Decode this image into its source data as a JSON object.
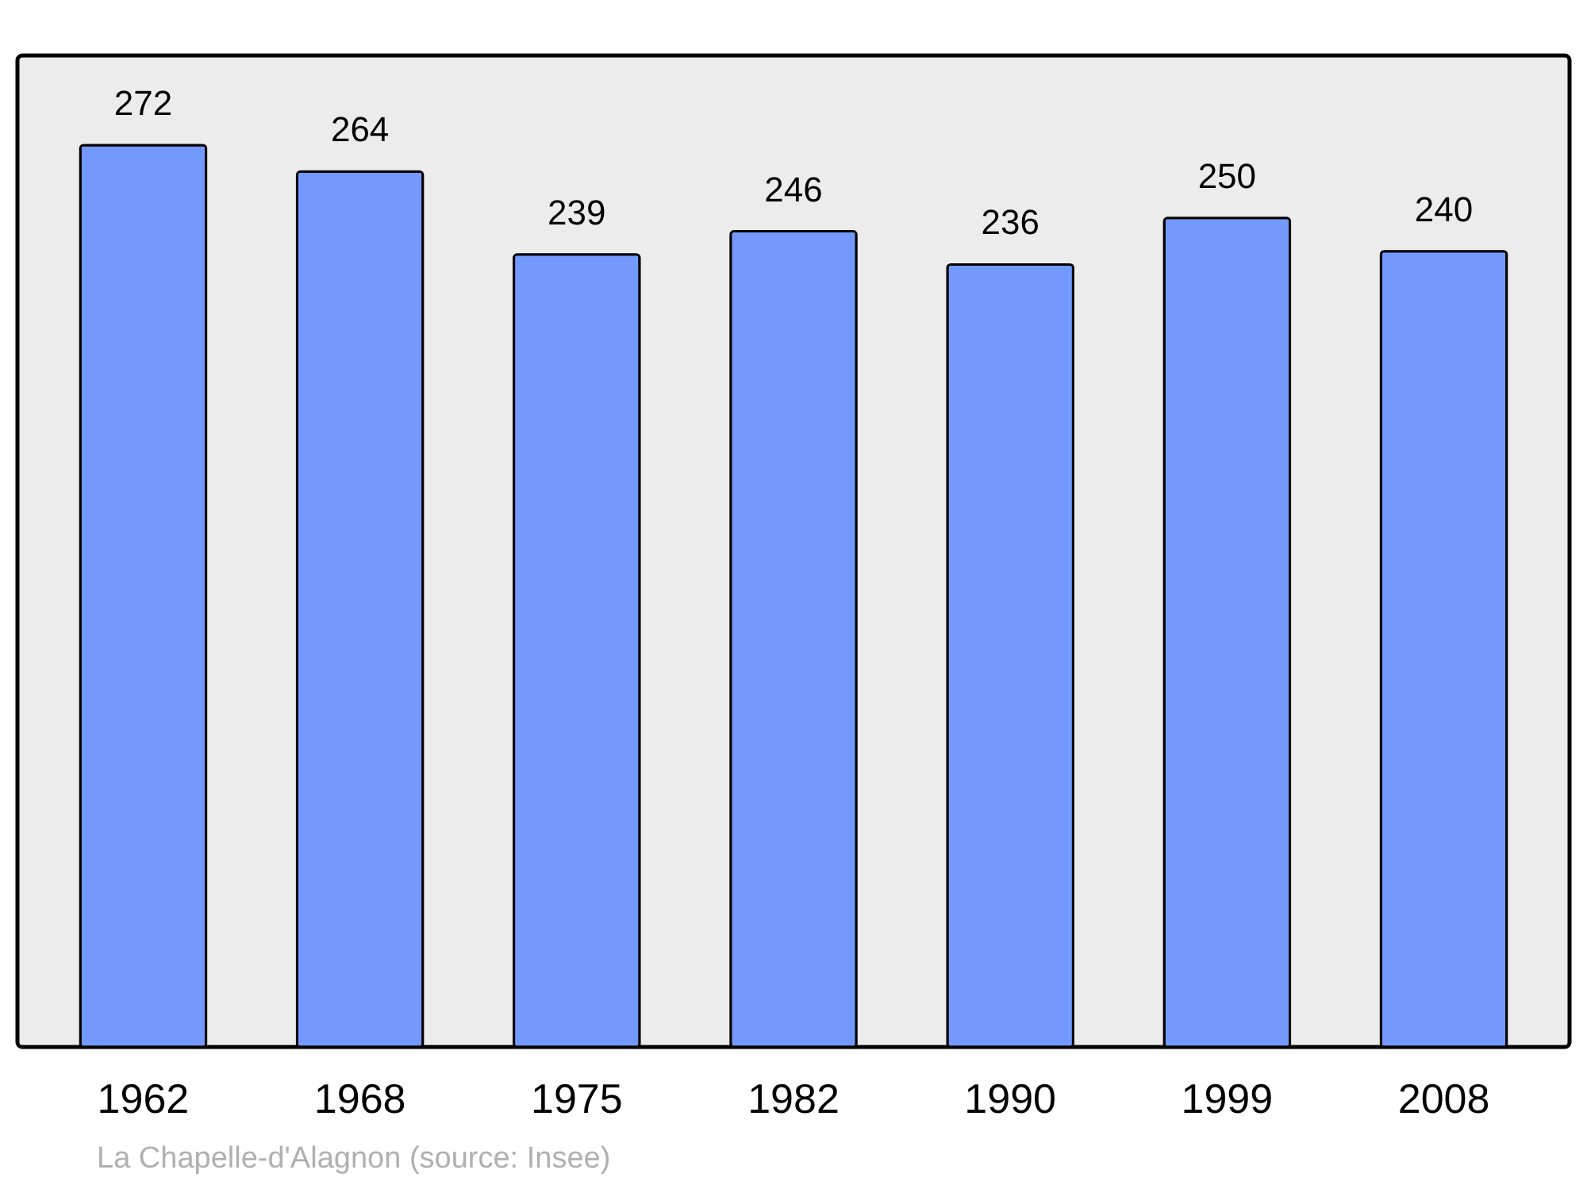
{
  "chart_data": {
    "type": "bar",
    "categories": [
      "1962",
      "1968",
      "1975",
      "1982",
      "1990",
      "1999",
      "2008"
    ],
    "values": [
      272,
      264,
      239,
      246,
      236,
      250,
      240
    ],
    "color": "#7399ff",
    "ylim": [
      0,
      299
    ],
    "data_labels": true,
    "tick_labels": "x",
    "annotations": [
      "La Chapelle-d'Alagnon    (source: Insee)"
    ]
  }
}
